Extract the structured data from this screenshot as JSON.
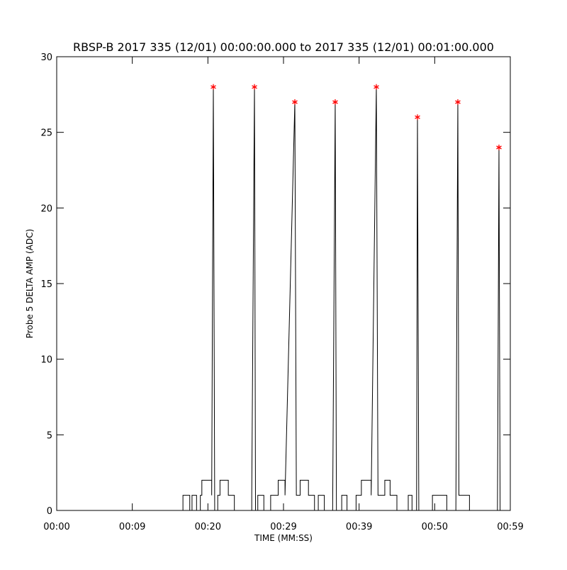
{
  "chart_data": {
    "type": "line",
    "title": "RBSP-B 2017 335 (12/01) 00:00:00.000 to 2017 335 (12/01) 00:01:00.000",
    "xlabel": "TIME (MM:SS)",
    "ylabel": "Probe 5 DELTA AMP (ADC)",
    "xlim": [
      0,
      60
    ],
    "xticks": [
      {
        "value": 0,
        "label": "00:00"
      },
      {
        "value": 10,
        "label": "00:09"
      },
      {
        "value": 20,
        "label": "00:20"
      },
      {
        "value": 30,
        "label": "00:29"
      },
      {
        "value": 40,
        "label": "00:39"
      },
      {
        "value": 50,
        "label": "00:50"
      },
      {
        "value": 60,
        "label": "00:59"
      }
    ],
    "ylim": [
      0,
      30
    ],
    "yticks": [
      0,
      5,
      10,
      15,
      20,
      25,
      30
    ],
    "series": [
      {
        "color": "#000000",
        "x": [
          0,
          16.7,
          16.7,
          17.6,
          17.6,
          17.9,
          17.9,
          18.5,
          18.5,
          19.0,
          19.0,
          19.2,
          19.2,
          20.5,
          20.5,
          20.72,
          20.9,
          21.3,
          21.3,
          21.6,
          21.6,
          22.7,
          22.7,
          23.5,
          23.5,
          25.8,
          25.8,
          26.16,
          26.3,
          26.6,
          26.6,
          27.4,
          27.4,
          28.3,
          28.3,
          29.3,
          29.3,
          30.2,
          30.2,
          31.5,
          31.7,
          32.2,
          32.2,
          33.3,
          33.3,
          34.1,
          34.1,
          34.6,
          34.6,
          35.4,
          35.4,
          36.5,
          36.84,
          37.0,
          37.7,
          37.7,
          38.4,
          38.4,
          39.6,
          39.6,
          40.3,
          40.3,
          41.6,
          41.6,
          42.28,
          42.5,
          43.4,
          43.4,
          44.1,
          44.1,
          45.0,
          45.0,
          46.5,
          46.5,
          47.0,
          47.0,
          47.6,
          47.72,
          47.9,
          49.7,
          49.7,
          51.6,
          51.6,
          52.8,
          53.06,
          53.2,
          54.6,
          54.6,
          58.3,
          58.5,
          58.65,
          60
        ],
        "values": [
          0,
          0,
          1,
          1,
          0,
          0,
          1,
          1,
          0,
          0,
          1,
          1,
          2,
          2,
          1,
          28,
          0,
          0,
          1,
          1,
          2,
          2,
          1,
          1,
          0,
          0,
          1,
          28,
          0,
          0,
          1,
          1,
          0,
          0,
          1,
          1,
          2,
          2,
          1,
          27,
          1,
          1,
          2,
          2,
          1,
          1,
          0,
          0,
          1,
          1,
          0,
          0,
          27,
          0,
          0,
          1,
          1,
          0,
          0,
          1,
          1,
          2,
          2,
          1,
          28,
          1,
          1,
          2,
          2,
          1,
          1,
          0,
          0,
          1,
          1,
          0,
          0,
          26,
          0,
          0,
          1,
          1,
          0,
          0,
          27,
          1,
          1,
          0,
          0,
          24,
          0,
          0
        ]
      },
      {
        "color": "#ff0000",
        "marker": "asterisk",
        "x": [
          20.72,
          26.16,
          31.5,
          36.84,
          42.28,
          47.72,
          53.06,
          58.5
        ],
        "values": [
          28,
          28,
          27,
          27,
          28,
          26,
          27,
          24
        ]
      }
    ]
  }
}
